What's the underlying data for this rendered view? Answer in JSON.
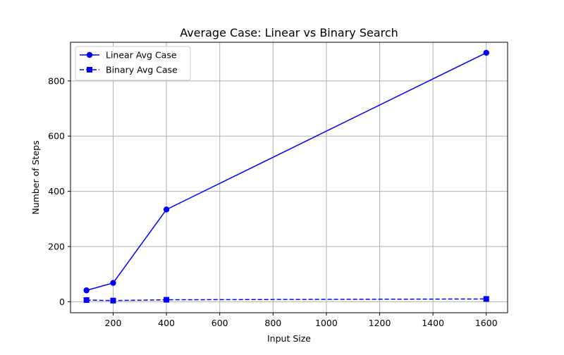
{
  "chart_data": {
    "type": "line",
    "title": "Average Case: Linear vs Binary Search",
    "xlabel": "Input Size",
    "ylabel": "Number of Steps",
    "xlim": [
      40,
      1680
    ],
    "ylim": [
      -40,
      940
    ],
    "xticks": [
      200,
      400,
      600,
      800,
      1000,
      1200,
      1400,
      1600
    ],
    "yticks": [
      0,
      200,
      400,
      600,
      800
    ],
    "grid": true,
    "legend_position": "upper-left",
    "series": [
      {
        "name": "Linear Avg Case",
        "color": "#0000ff",
        "linestyle": "solid",
        "marker": "circle",
        "x": [
          100,
          200,
          400,
          1600
        ],
        "y": [
          41,
          68,
          334,
          902
        ]
      },
      {
        "name": "Binary Avg Case",
        "color": "#0000ff",
        "linestyle": "dashed",
        "marker": "square",
        "x": [
          100,
          200,
          400,
          1600
        ],
        "y": [
          6,
          4,
          7,
          10
        ]
      }
    ]
  }
}
